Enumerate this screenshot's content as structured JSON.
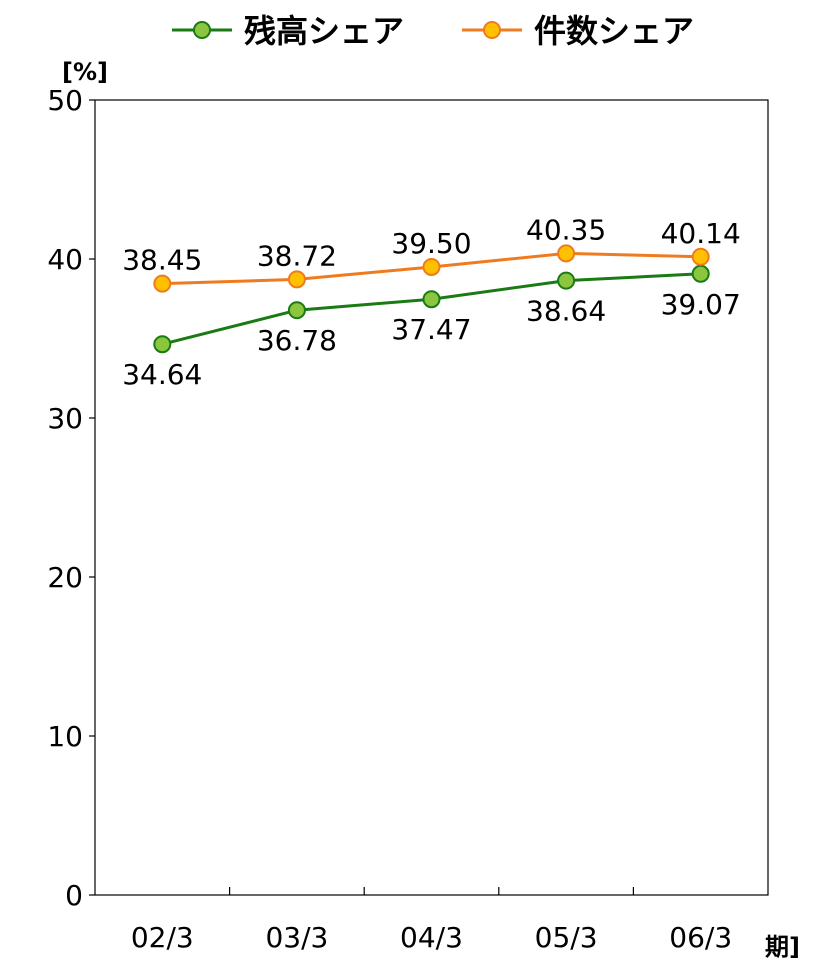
{
  "chart_data": {
    "type": "line",
    "categories": [
      "02/3",
      "03/3",
      "04/3",
      "05/3",
      "06/3"
    ],
    "ylim": [
      0,
      50
    ],
    "yticks": [
      0,
      10,
      20,
      30,
      40,
      50
    ],
    "ylabel": "[%]",
    "xlabel": "期]",
    "grid": false,
    "legend_position": "top-center",
    "series": [
      {
        "name": "残高シェア",
        "color": "#1a7a14",
        "marker_color": "#8cc63f",
        "label_position": "below",
        "values": [
          34.64,
          36.78,
          37.47,
          38.64,
          39.07
        ],
        "labels": [
          "34.64",
          "36.78",
          "37.47",
          "38.64",
          "39.07"
        ]
      },
      {
        "name": "件数シェア",
        "color": "#f07b1e",
        "marker_color": "#ffc000",
        "label_position": "above",
        "values": [
          38.45,
          38.72,
          39.5,
          40.35,
          40.14
        ],
        "labels": [
          "38.45",
          "38.72",
          "39.50",
          "40.35",
          "40.14"
        ]
      }
    ]
  }
}
